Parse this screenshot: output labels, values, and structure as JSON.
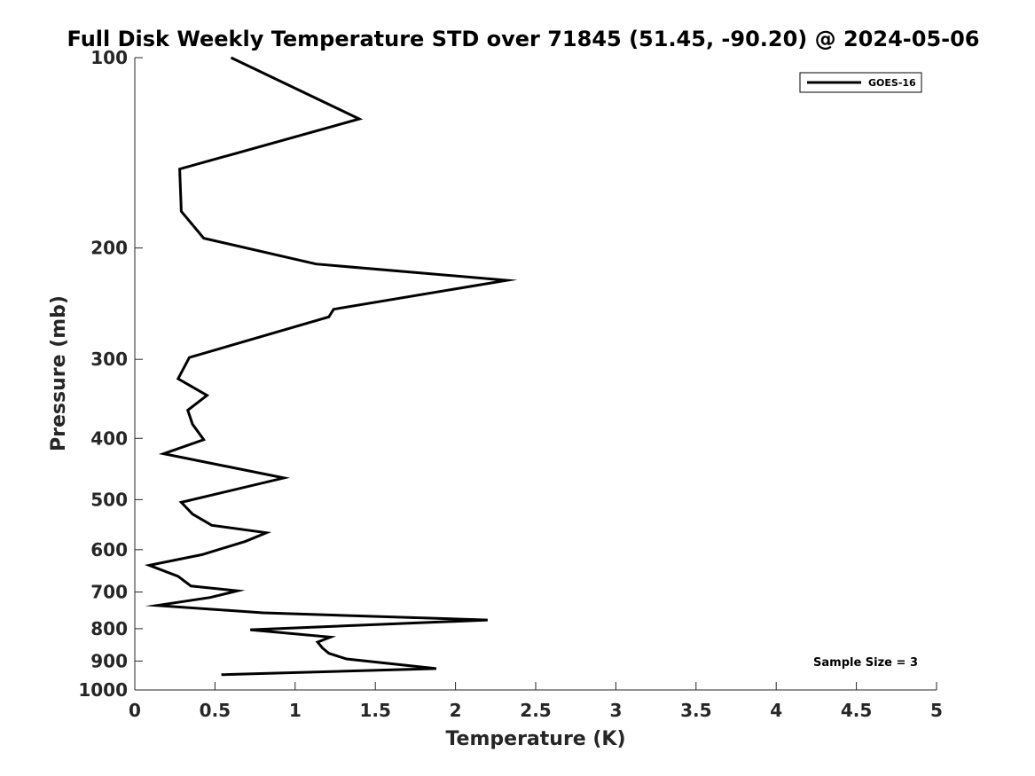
{
  "chart_data": {
    "type": "line",
    "title": "Full Disk Weekly Temperature STD over 71845 (51.45, -90.20) @ 2024-05-06",
    "xlabel": "Temperature (K)",
    "ylabel": "Pressure (mb)",
    "xlim": [
      0,
      5
    ],
    "ylim": [
      100,
      1000
    ],
    "y_scale": "log",
    "y_reversed": true,
    "x_ticks": [
      0,
      0.5,
      1,
      1.5,
      2,
      2.5,
      3,
      3.5,
      4,
      4.5,
      5
    ],
    "x_tick_labels": [
      "0",
      "0.5",
      "1",
      "1.5",
      "2",
      "2.5",
      "3",
      "3.5",
      "4",
      "4.5",
      "5"
    ],
    "y_ticks": [
      100,
      200,
      300,
      400,
      500,
      600,
      700,
      800,
      900,
      1000
    ],
    "y_tick_labels": [
      "100",
      "200",
      "300",
      "400",
      "500",
      "600",
      "700",
      "800",
      "900",
      "1000"
    ],
    "grid": false,
    "legend_position": "top-right",
    "annotation": "Sample Size = 3",
    "series": [
      {
        "name": "GOES-16",
        "color": "#000000",
        "points": [
          [
            0.6,
            100
          ],
          [
            1.4,
            125
          ],
          [
            0.28,
            150
          ],
          [
            0.29,
            175
          ],
          [
            0.43,
            193
          ],
          [
            1.13,
            212
          ],
          [
            2.32,
            225
          ],
          [
            1.24,
            250
          ],
          [
            1.21,
            257
          ],
          [
            0.34,
            298
          ],
          [
            0.27,
            322
          ],
          [
            0.45,
            342
          ],
          [
            0.33,
            361
          ],
          [
            0.36,
            380
          ],
          [
            0.43,
            402
          ],
          [
            0.18,
            423
          ],
          [
            0.93,
            462
          ],
          [
            0.29,
            505
          ],
          [
            0.36,
            527
          ],
          [
            0.48,
            549
          ],
          [
            0.82,
            564
          ],
          [
            0.69,
            582
          ],
          [
            0.42,
            611
          ],
          [
            0.09,
            635
          ],
          [
            0.27,
            661
          ],
          [
            0.35,
            685
          ],
          [
            0.64,
            697
          ],
          [
            0.47,
            714
          ],
          [
            0.14,
            735
          ],
          [
            0.8,
            755
          ],
          [
            2.2,
            775
          ],
          [
            0.72,
            803
          ],
          [
            1.22,
            825
          ],
          [
            1.14,
            840
          ],
          [
            1.17,
            858
          ],
          [
            1.21,
            875
          ],
          [
            1.32,
            893
          ],
          [
            1.88,
            925
          ],
          [
            0.54,
            946
          ]
        ]
      }
    ]
  }
}
